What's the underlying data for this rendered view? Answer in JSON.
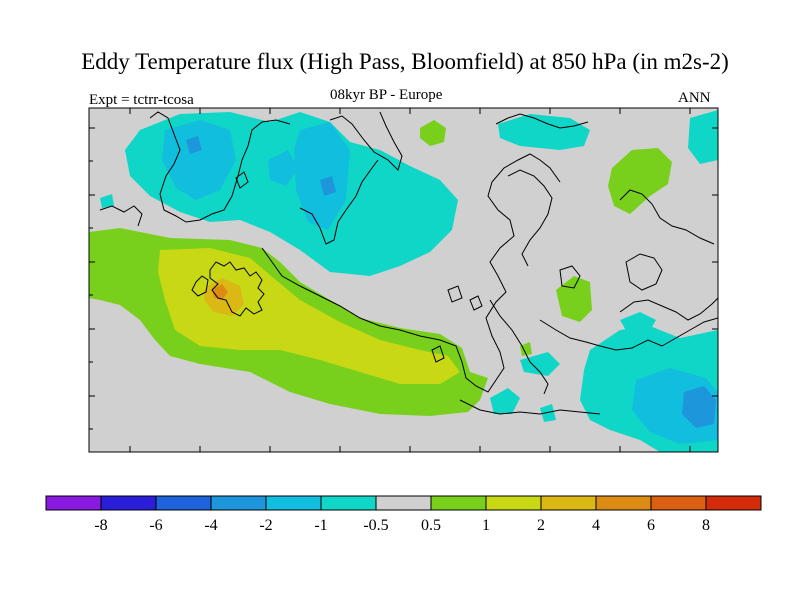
{
  "title": "Eddy Temperature flux (High Pass, Bloomfield) at 850 hPa (in m2s-2)",
  "subtitle": "08kyr BP - Europe",
  "experiment": "Expt = tctrr-tcosa",
  "season": "ANN",
  "colorbar": {
    "colors": [
      "#8a1ae0",
      "#2a1ed8",
      "#1e62dc",
      "#1e96dc",
      "#12bede",
      "#10d6c8",
      "#d0d0d0",
      "#78d01c",
      "#c8d814",
      "#dcb814",
      "#dc8c14",
      "#dc6014",
      "#d42c0a"
    ],
    "labels": [
      "-8",
      "-6",
      "-4",
      "-2",
      "-1",
      "-0.5",
      "0.5",
      "1",
      "2",
      "4",
      "6",
      "8"
    ]
  },
  "legend_levels": {
    "cyan": "#10d6c8",
    "light_blue": "#12bede",
    "blue": "#1e96dc",
    "green": "#78d01c",
    "yellow": "#c8d814",
    "orange": "#dcb814",
    "dark_orange": "#dc8c14",
    "background": "#d0d0d0"
  }
}
